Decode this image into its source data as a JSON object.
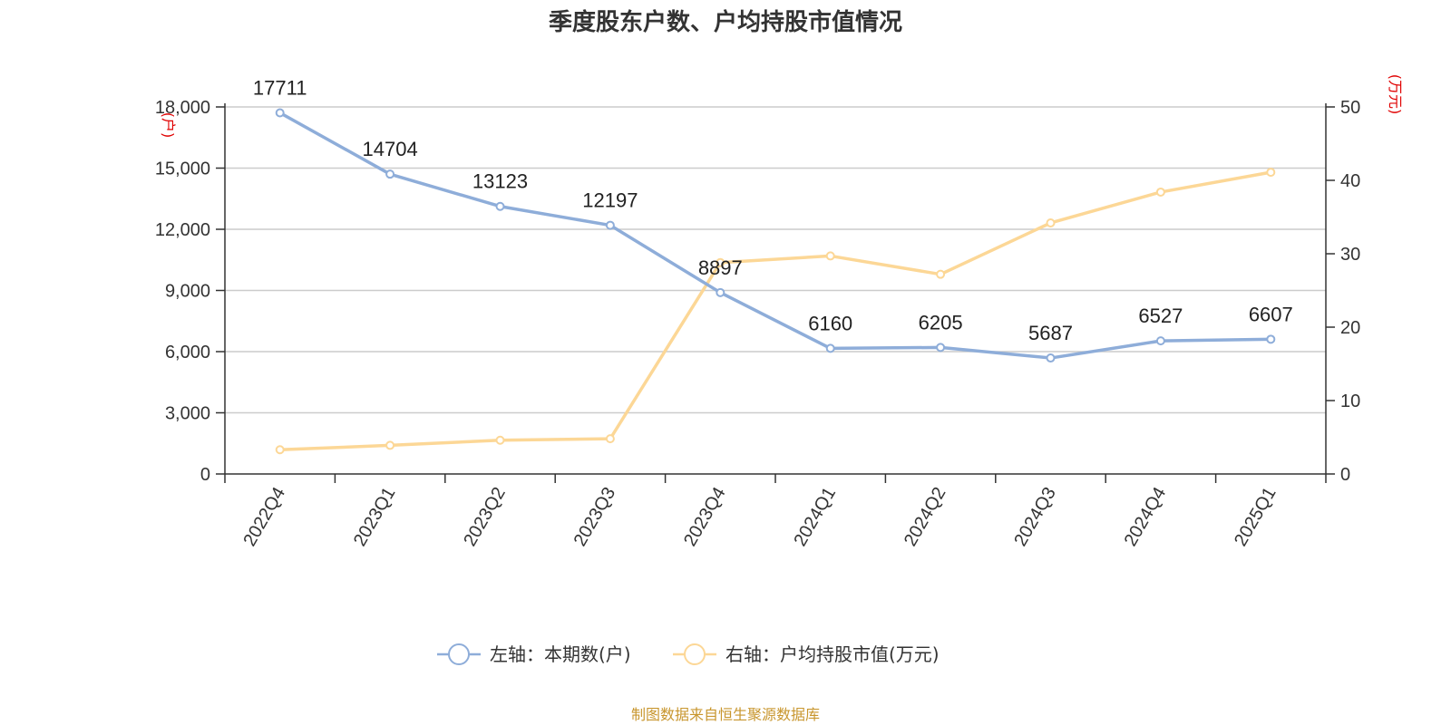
{
  "title": "季度股东户数、户均持股市值情况",
  "source_note": "制图数据来自恒生聚源数据库",
  "colors": {
    "left_series": "#8eadd9",
    "right_series": "#fcd796",
    "axis": "#333333",
    "grid": "#cccccc",
    "unit": "#e00000",
    "source": "#c8962e"
  },
  "chart_data": {
    "type": "line",
    "title": "季度股东户数、户均持股市值情况",
    "categories": [
      "2022Q4",
      "2023Q1",
      "2023Q2",
      "2023Q3",
      "2023Q4",
      "2024Q1",
      "2024Q2",
      "2024Q3",
      "2024Q4",
      "2025Q1"
    ],
    "y_left": {
      "unit": "(户)",
      "range": [
        0,
        18000
      ],
      "ticks": [
        0,
        3000,
        6000,
        9000,
        12000,
        15000,
        18000
      ],
      "tick_labels": [
        "0",
        "3,000",
        "6,000",
        "9,000",
        "12,000",
        "15,000",
        "18,000"
      ]
    },
    "y_right": {
      "unit": "(万元)",
      "range": [
        0,
        50
      ],
      "ticks": [
        0,
        10,
        20,
        30,
        40,
        50
      ],
      "tick_labels": [
        "0",
        "10",
        "20",
        "30",
        "40",
        "50"
      ]
    },
    "grid": true,
    "legend_position": "bottom-center",
    "series": [
      {
        "name": "左轴：本期数(户)",
        "axis": "left",
        "color": "#8eadd9",
        "values": [
          17711,
          14704,
          13123,
          12197,
          8897,
          6160,
          6205,
          5687,
          6527,
          6607
        ],
        "labels": [
          "17711",
          "14704",
          "13123",
          "12197",
          "8897",
          "6160",
          "6205",
          "5687",
          "6527",
          "6607"
        ]
      },
      {
        "name": "右轴：户均持股市值(万元)",
        "axis": "right",
        "color": "#fcd796",
        "values": [
          3.3,
          3.9,
          4.6,
          4.8,
          28.8,
          29.7,
          27.2,
          34.2,
          38.4,
          41.1
        ]
      }
    ]
  }
}
